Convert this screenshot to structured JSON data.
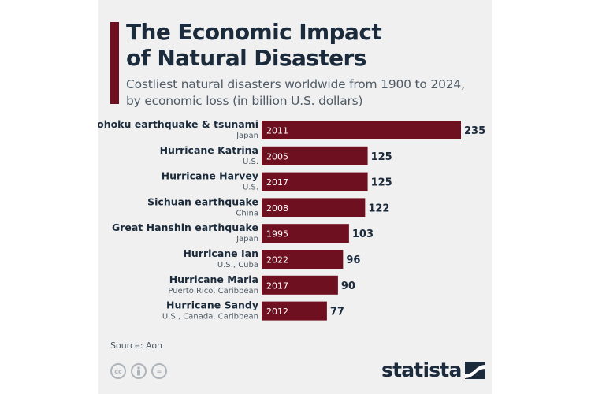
{
  "header": {
    "title": "The Economic Impact\nof Natural Disasters",
    "subtitle": "Costliest natural disasters worldwide from 1900 to 2024,\nby economic loss (in billion U.S. dollars)"
  },
  "chart_data": {
    "type": "bar",
    "orientation": "horizontal",
    "title": "The Economic Impact of Natural Disasters",
    "subtitle": "Costliest natural disasters worldwide from 1900 to 2024, by economic loss (in billion U.S. dollars)",
    "unit": "billion U.S. dollars",
    "xlim": [
      0,
      235
    ],
    "grid": false,
    "categories": [
      "Tohoku earthquake & tsunami",
      "Hurricane Katrina",
      "Hurricane Harvey",
      "Sichuan earthquake",
      "Great Hanshin earthquake",
      "Hurricane Ian",
      "Hurricane Maria",
      "Hurricane Sandy"
    ],
    "locations": [
      "Japan",
      "U.S.",
      "U.S.",
      "China",
      "Japan",
      "U.S., Cuba",
      "Puerto Rico, Caribbean",
      "U.S., Canada, Caribbean"
    ],
    "years": [
      "2011",
      "2005",
      "2017",
      "2008",
      "1995",
      "2022",
      "2017",
      "2012"
    ],
    "values": [
      235,
      125,
      125,
      122,
      103,
      96,
      90,
      77
    ],
    "bar_color": "#6e1020"
  },
  "footer": {
    "source": "Source: Aon",
    "logo": "statista",
    "license_icons": [
      "cc-icon",
      "by-icon",
      "nd-icon"
    ],
    "license_labels": [
      "cc",
      "",
      "="
    ]
  }
}
